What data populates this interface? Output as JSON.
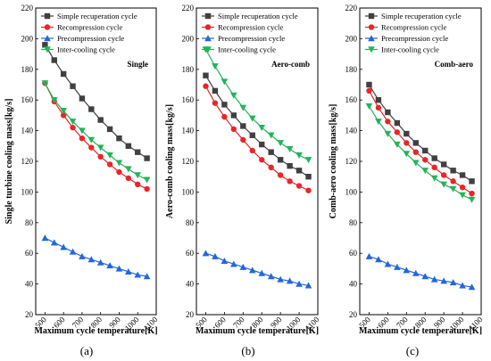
{
  "series_styles": [
    {
      "color": "#404040",
      "marker": "square"
    },
    {
      "color": "#e8262a",
      "marker": "circle"
    },
    {
      "color": "#2266e0",
      "marker": "triangle-up"
    },
    {
      "color": "#22b45a",
      "marker": "triangle-down"
    }
  ],
  "chart_data": [
    {
      "type": "line",
      "panel_label": "Single",
      "caption": "(a)",
      "xlabel": "Maximum cycle temperature[K]",
      "ylabel": "Single turbine cooling mass[kg/s]",
      "xlim": [
        450,
        1100
      ],
      "ylim": [
        20,
        220
      ],
      "xticks": [
        "500",
        "600",
        "700",
        "800",
        "900",
        "1000",
        "1100"
      ],
      "yticks": [
        "20",
        "40",
        "60",
        "80",
        "100",
        "120",
        "140",
        "160",
        "180",
        "200",
        "220"
      ],
      "legend_position": "top-right",
      "x": [
        500,
        550,
        600,
        650,
        700,
        750,
        800,
        850,
        900,
        950,
        1000,
        1050
      ],
      "series": [
        {
          "name": "Simple recuperation cycle",
          "values": [
            196,
            186,
            177,
            169,
            161,
            154,
            147,
            141,
            135,
            130,
            126,
            122
          ]
        },
        {
          "name": "Recompression cycle",
          "values": [
            171,
            159,
            150,
            142,
            135,
            129,
            123,
            118,
            113,
            109,
            105,
            102
          ]
        },
        {
          "name": "Precompression cycle",
          "values": [
            70,
            67,
            64,
            61,
            58,
            56,
            54,
            52,
            50,
            48,
            46,
            45
          ]
        },
        {
          "name": "Inter-cooling cycle",
          "values": [
            171,
            160,
            153,
            146,
            140,
            134,
            129,
            124,
            119,
            115,
            111,
            108
          ]
        }
      ]
    },
    {
      "type": "line",
      "panel_label": "Aero-comb",
      "caption": "(b)",
      "xlabel": "Maximum cycle temperature[K]",
      "ylabel": "Aero-comb cooling mass[kg/s]",
      "xlim": [
        450,
        1100
      ],
      "ylim": [
        20,
        220
      ],
      "xticks": [
        "500",
        "600",
        "700",
        "800",
        "900",
        "1000",
        "1100"
      ],
      "yticks": [
        "20",
        "40",
        "60",
        "80",
        "100",
        "120",
        "140",
        "160",
        "180",
        "200",
        "220"
      ],
      "legend_position": "top-right",
      "x": [
        500,
        550,
        600,
        650,
        700,
        750,
        800,
        850,
        900,
        950,
        1000,
        1050
      ],
      "series": [
        {
          "name": "Simple recuperation cycle",
          "values": [
            176,
            166,
            157,
            150,
            143,
            137,
            131,
            126,
            121,
            117,
            114,
            110
          ]
        },
        {
          "name": "Recompression cycle",
          "values": [
            169,
            158,
            149,
            141,
            134,
            127,
            121,
            116,
            111,
            107,
            104,
            101
          ]
        },
        {
          "name": "Precompression cycle",
          "values": [
            60,
            58,
            55,
            53,
            51,
            49,
            47,
            45,
            43,
            42,
            40,
            39
          ]
        },
        {
          "name": "Inter-cooling cycle",
          "values": [
            193,
            182,
            172,
            163,
            155,
            148,
            142,
            137,
            132,
            128,
            124,
            121
          ]
        }
      ]
    },
    {
      "type": "line",
      "panel_label": "Comb-aero",
      "caption": "(c)",
      "xlabel": "Maximum cycle temperature[K]",
      "ylabel": "Comb-aero cooling mass[kg/s]",
      "xlim": [
        450,
        1100
      ],
      "ylim": [
        20,
        220
      ],
      "xticks": [
        "500",
        "600",
        "700",
        "800",
        "900",
        "1000",
        "1100"
      ],
      "yticks": [
        "20",
        "40",
        "60",
        "80",
        "100",
        "120",
        "140",
        "160",
        "180",
        "200",
        "220"
      ],
      "legend_position": "top-right",
      "x": [
        500,
        550,
        600,
        650,
        700,
        750,
        800,
        850,
        900,
        950,
        1000,
        1050
      ],
      "series": [
        {
          "name": "Simple recuperation cycle",
          "values": [
            170,
            160,
            152,
            145,
            138,
            132,
            127,
            122,
            118,
            114,
            111,
            107
          ]
        },
        {
          "name": "Recompression cycle",
          "values": [
            166,
            155,
            146,
            139,
            132,
            126,
            121,
            116,
            111,
            107,
            103,
            99
          ]
        },
        {
          "name": "Precompression cycle",
          "values": [
            58,
            56,
            53,
            51,
            49,
            47,
            45,
            43,
            42,
            41,
            39,
            38
          ]
        },
        {
          "name": "Inter-cooling cycle",
          "values": [
            156,
            146,
            138,
            131,
            125,
            119,
            114,
            109,
            105,
            102,
            98,
            95
          ]
        }
      ]
    }
  ]
}
